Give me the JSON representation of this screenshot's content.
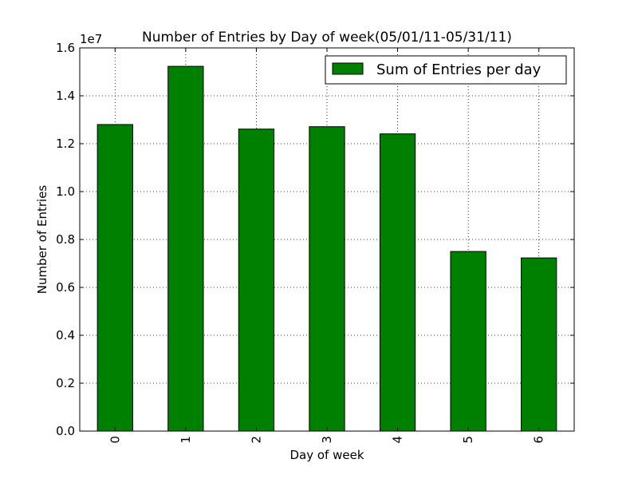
{
  "chart_data": {
    "type": "bar",
    "title": "Number of Entries by Day of week(05/01/11-05/31/11)",
    "xlabel": "Day of week",
    "ylabel": "Number of Entries",
    "y_multiplier_label": "1e7",
    "categories": [
      "0",
      "1",
      "2",
      "3",
      "4",
      "5",
      "6"
    ],
    "series": [
      {
        "name": "Sum of Entries per day",
        "values": [
          12800000,
          15230000,
          12610000,
          12710000,
          12410000,
          7500000,
          7230000
        ]
      }
    ],
    "ylim": [
      0,
      16000000
    ],
    "yticks": [
      0.0,
      0.2,
      0.4,
      0.6,
      0.8,
      1.0,
      1.2,
      1.4,
      1.6
    ],
    "ytick_labels": [
      "0.0",
      "0.2",
      "0.4",
      "0.6",
      "0.8",
      "1.0",
      "1.2",
      "1.4",
      "1.6"
    ],
    "y_scale": 10000000,
    "grid": true,
    "legend_position": "top-right",
    "bar_color": "#008000",
    "xtick_rotation": "vertical"
  }
}
